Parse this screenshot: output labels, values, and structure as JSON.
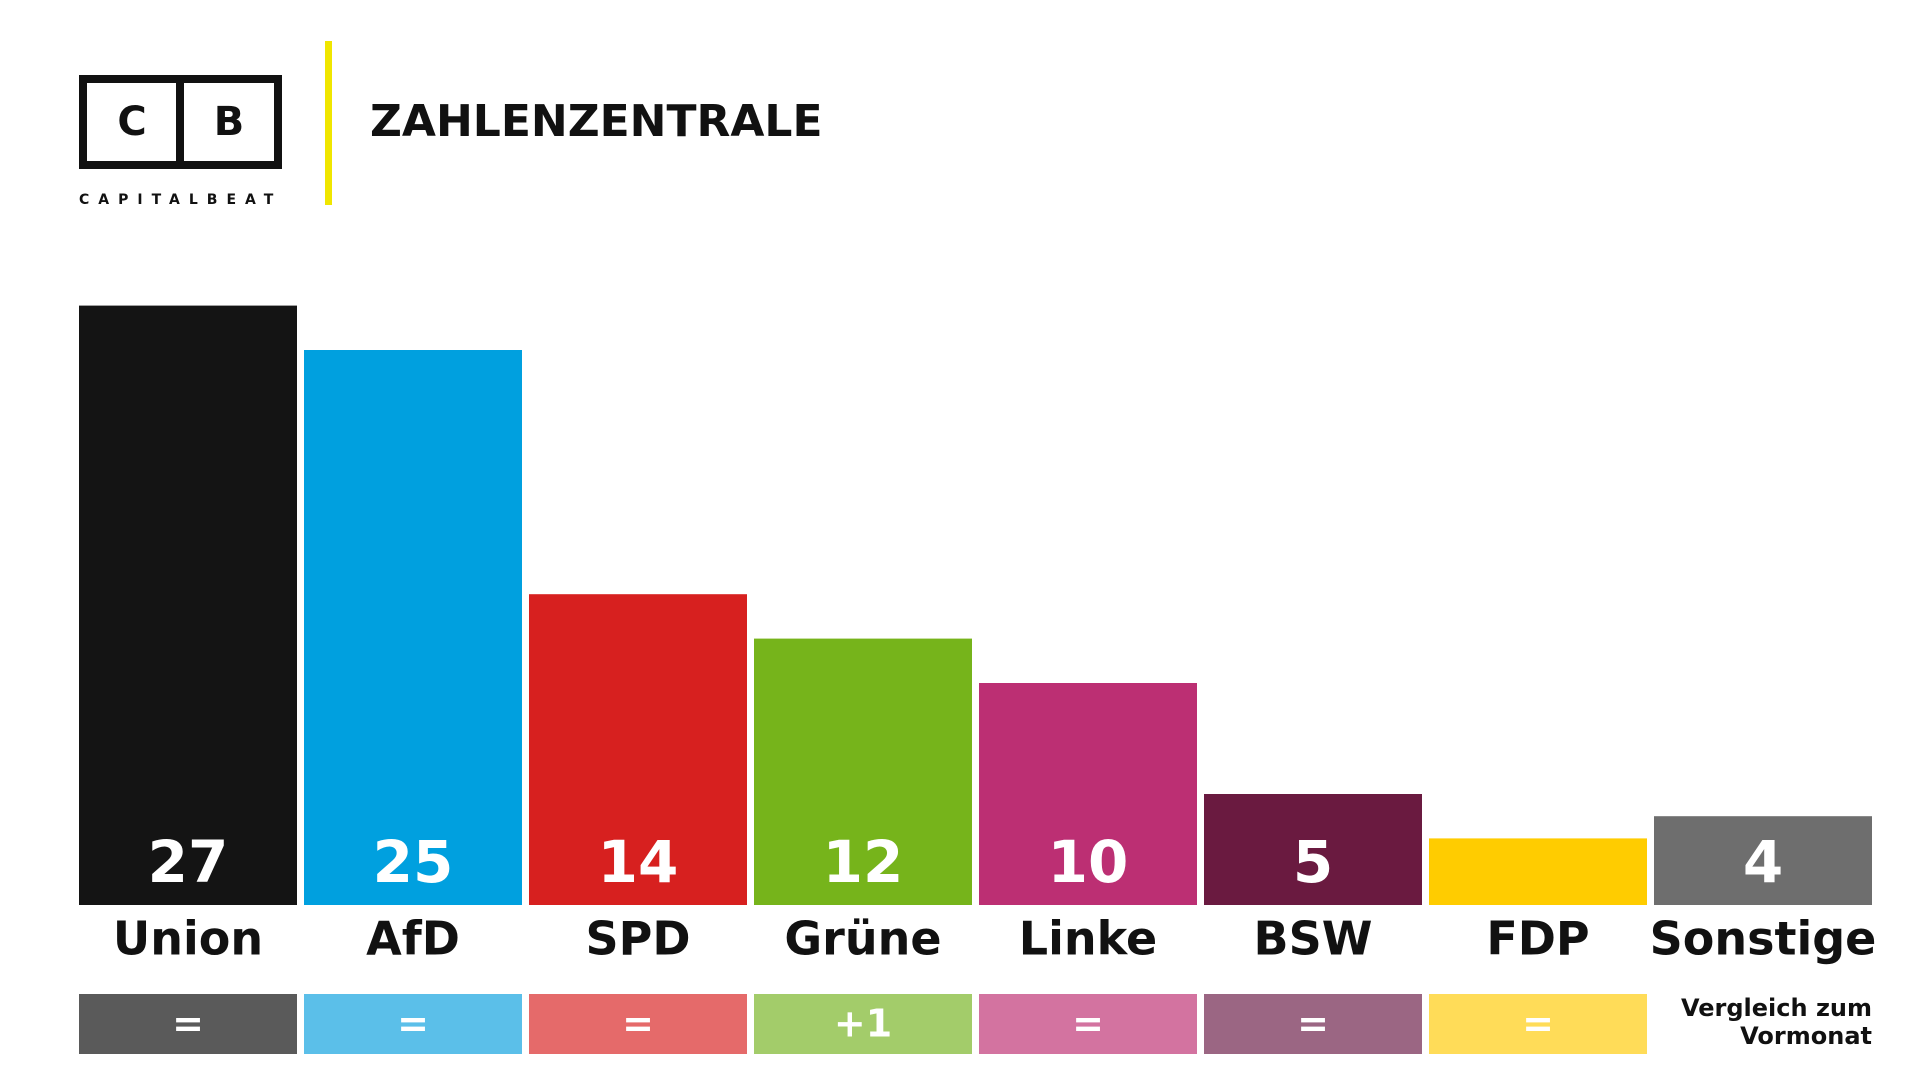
{
  "logo": {
    "left": "C",
    "right": "B",
    "name": "CAPITALBEAT"
  },
  "header": {
    "title": "ZAHLENZENTRALE"
  },
  "chart_data": {
    "type": "bar",
    "categories": [
      "Union",
      "AfD",
      "SPD",
      "Grüne",
      "Linke",
      "BSW",
      "FDP",
      "Sonstige"
    ],
    "values": [
      27,
      25,
      14,
      12,
      10,
      5,
      3,
      4
    ],
    "value_labels": [
      "27",
      "25",
      "14",
      "12",
      "10",
      "5",
      null,
      "4"
    ],
    "colors": [
      "#141414",
      "#00a0df",
      "#d7201f",
      "#76b41b",
      "#bc2f73",
      "#6a1a40",
      "#ffcc00",
      "#6e6e6e"
    ],
    "changes": [
      "=",
      "=",
      "=",
      "+1",
      "=",
      "=",
      "=",
      null
    ],
    "change_colors": [
      "#5a5a5a",
      "#5bbfe9",
      "#e56a6a",
      "#a3cc6a",
      "#d373a0",
      "#9b6683",
      "#ffdc58",
      null
    ],
    "comparison_note": "Vergleich zum Vormonat"
  }
}
